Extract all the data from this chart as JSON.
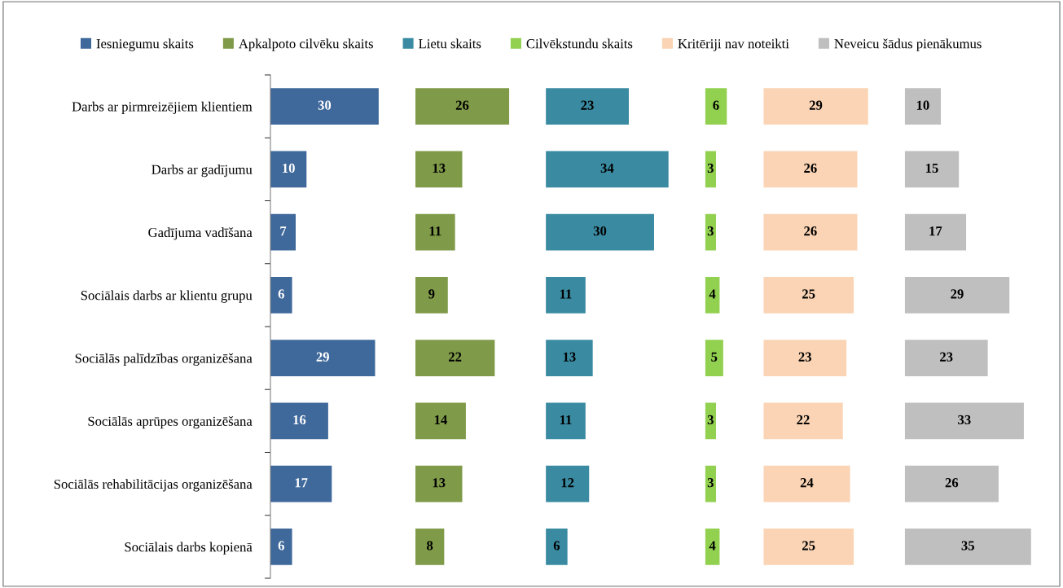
{
  "chart_data": [
    {
      "type": "bar",
      "orientation": "horizontal",
      "categories": [
        "Darbs ar pirmreizējiem klientiem",
        "Darbs ar gadījumu",
        "Gadījuma vadīšana",
        "Sociālais darbs ar klientu grupu",
        "Sociālās palīdzības organizēšana",
        "Sociālās aprūpes organizēšana",
        "Sociālās rehabilitācijas organizēšana",
        "Sociālais darbs kopienā"
      ],
      "series": [
        {
          "name": "Iesniegumu skaits",
          "color": "#3f689b",
          "values": [
            30,
            10,
            7,
            6,
            29,
            16,
            17,
            6
          ]
        }
      ],
      "data_labels": true,
      "tick_labels": "y",
      "legend": "top",
      "grid": false
    },
    {
      "type": "bar",
      "orientation": "horizontal",
      "categories": [
        null,
        null,
        null,
        null,
        null,
        null,
        null,
        null
      ],
      "series": [
        {
          "name": "Apkalpoto cilvēku skaits",
          "color": "#7f9a48",
          "values": [
            26,
            13,
            11,
            9,
            22,
            14,
            13,
            8
          ]
        }
      ],
      "data_labels": true,
      "tick_labels": false,
      "legend": "top",
      "grid": false
    },
    {
      "type": "bar",
      "orientation": "horizontal",
      "categories": [
        null,
        null,
        null,
        null,
        null,
        null,
        null,
        null
      ],
      "series": [
        {
          "name": "Lietu skaits",
          "color": "#3a8ba2",
          "values": [
            23,
            34,
            30,
            11,
            13,
            11,
            12,
            6
          ]
        }
      ],
      "data_labels": true,
      "tick_labels": false,
      "legend": "top",
      "grid": false
    },
    {
      "type": "bar",
      "orientation": "horizontal",
      "categories": [
        null,
        null,
        null,
        null,
        null,
        null,
        null,
        null
      ],
      "series": [
        {
          "name": "Cilvēkstundu skaits",
          "color": "#92d050",
          "values": [
            6,
            3,
            3,
            4,
            5,
            3,
            3,
            4
          ]
        }
      ],
      "data_labels": true,
      "tick_labels": false,
      "legend": "top",
      "grid": false
    },
    {
      "type": "bar",
      "orientation": "horizontal",
      "categories": [
        null,
        null,
        null,
        null,
        null,
        null,
        null,
        null
      ],
      "series": [
        {
          "name": "Kritēriji nav noteikti",
          "color": "#fad4b4",
          "values": [
            29,
            26,
            26,
            25,
            23,
            22,
            24,
            25
          ]
        }
      ],
      "data_labels": true,
      "tick_labels": false,
      "legend": "top",
      "grid": false
    },
    {
      "type": "bar",
      "orientation": "horizontal",
      "categories": [
        null,
        null,
        null,
        null,
        null,
        null,
        null,
        null
      ],
      "series": [
        {
          "name": "Neveicu šādus pienākumus",
          "color": "#bfbfbf",
          "values": [
            10,
            15,
            17,
            29,
            23,
            33,
            26,
            35
          ]
        }
      ],
      "data_labels": true,
      "tick_labels": false,
      "legend": "top",
      "grid": false
    }
  ]
}
